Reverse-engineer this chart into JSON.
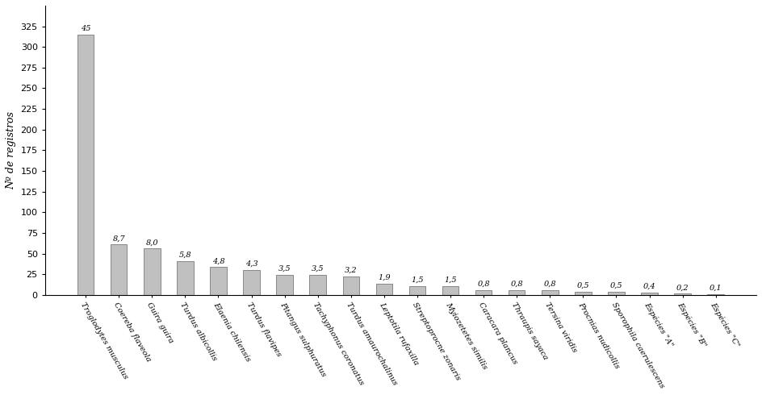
{
  "categories": [
    "Troglodytes musculus",
    "Coereba flaveola",
    "Guira guira",
    "Turdus albicollis",
    "Elaenia chilensis",
    "Turdus flavipes",
    "Pitangus sulphuratus",
    "Tachyphonus coronatus",
    "Turdus amaurochalinus",
    "Leptotila rufaxilla",
    "Streptoprocne zonaris",
    "Myiozetetes similis",
    "Caracara plancus",
    "Thraupis sayaca",
    "Tersina viridis",
    "Procnias nudicollis",
    "Sporophila caerulescens",
    "Espécies \"A\"",
    "Espécies \"B\"",
    "Espécies \"C\""
  ],
  "values": [
    315,
    61,
    56,
    40.6,
    33.6,
    30.1,
    24.5,
    24.5,
    22.4,
    13.3,
    10.5,
    10.5,
    5.6,
    5.6,
    5.6,
    3.5,
    3.5,
    2.8,
    1.4,
    0.7
  ],
  "labels": [
    "45",
    "8,7",
    "8,0",
    "5,8",
    "4,8",
    "4,3",
    "3,5",
    "3,5",
    "3,2",
    "1,9",
    "1,5",
    "1,5",
    "0,8",
    "0,8",
    "0,8",
    "0,5",
    "0,5",
    "0,4",
    "0,2",
    "0,1"
  ],
  "bar_color": "#c0c0c0",
  "bar_edge_color": "#666666",
  "ylabel": "Nº de registros",
  "ylim": [
    0,
    350
  ],
  "yticks": [
    0,
    25,
    50,
    75,
    100,
    125,
    150,
    175,
    200,
    225,
    250,
    275,
    300,
    325
  ],
  "background_color": "#ffffff",
  "label_fontsize": 7,
  "ylabel_fontsize": 9,
  "tick_fontsize": 8,
  "xtick_fontsize": 7,
  "bar_width": 0.5,
  "rotation": -60
}
